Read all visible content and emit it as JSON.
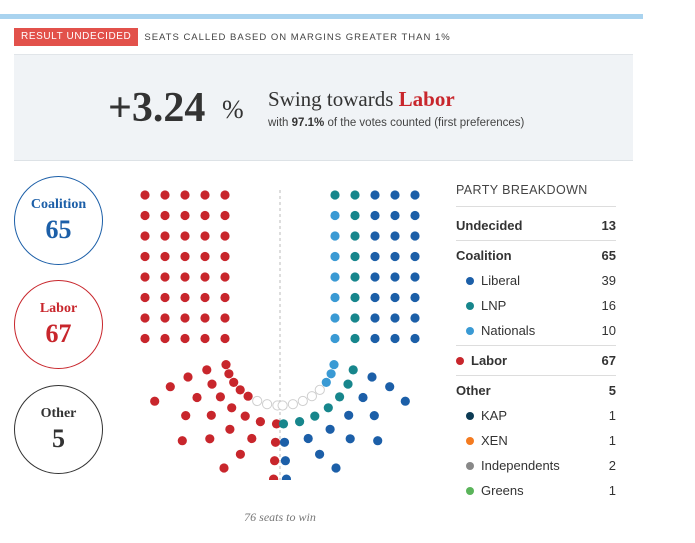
{
  "status": {
    "badge": "RESULT UNDECIDED",
    "note": "SEATS CALLED BASED ON MARGINS GREATER THAN 1%"
  },
  "swing": {
    "value": "+3.24",
    "unit": "%",
    "title_prefix": "Swing towards ",
    "party": "Labor",
    "subtitle_prefix": "with ",
    "percent_counted": "97.1%",
    "subtitle_suffix": " of the votes counted (first preferences)"
  },
  "circles": {
    "coalition": {
      "name": "Coalition",
      "seats": "65"
    },
    "labor": {
      "name": "Labor",
      "seats": "67"
    },
    "other": {
      "name": "Other",
      "seats": "5"
    }
  },
  "seats_to_win": "76 seats to win",
  "colors": {
    "labor": "#c8262c",
    "liberal": "#1c5fa8",
    "lnp": "#17868c",
    "nationals": "#3a9ad4",
    "undecided": "#d9d9d9",
    "kap": "#0c3b54",
    "xen": "#f47b20",
    "independents": "#888888",
    "greens": "#5ab45a"
  },
  "breakdown": {
    "title": "PARTY BREAKDOWN",
    "undecided": {
      "label": "Undecided",
      "value": "13"
    },
    "coalition": {
      "label": "Coalition",
      "value": "65",
      "parties": [
        {
          "label": "Liberal",
          "value": "39",
          "color": "#1c5fa8"
        },
        {
          "label": "LNP",
          "value": "16",
          "color": "#17868c"
        },
        {
          "label": "Nationals",
          "value": "10",
          "color": "#3a9ad4"
        }
      ]
    },
    "labor": {
      "label": "Labor",
      "value": "67",
      "color": "#c8262c"
    },
    "other": {
      "label": "Other",
      "value": "5",
      "parties": [
        {
          "label": "KAP",
          "value": "1",
          "color": "#0c3b54"
        },
        {
          "label": "XEN",
          "value": "1",
          "color": "#f47b20"
        },
        {
          "label": "Independents",
          "value": "2",
          "color": "#888888"
        },
        {
          "label": "Greens",
          "value": "1",
          "color": "#5ab45a"
        }
      ]
    }
  }
}
